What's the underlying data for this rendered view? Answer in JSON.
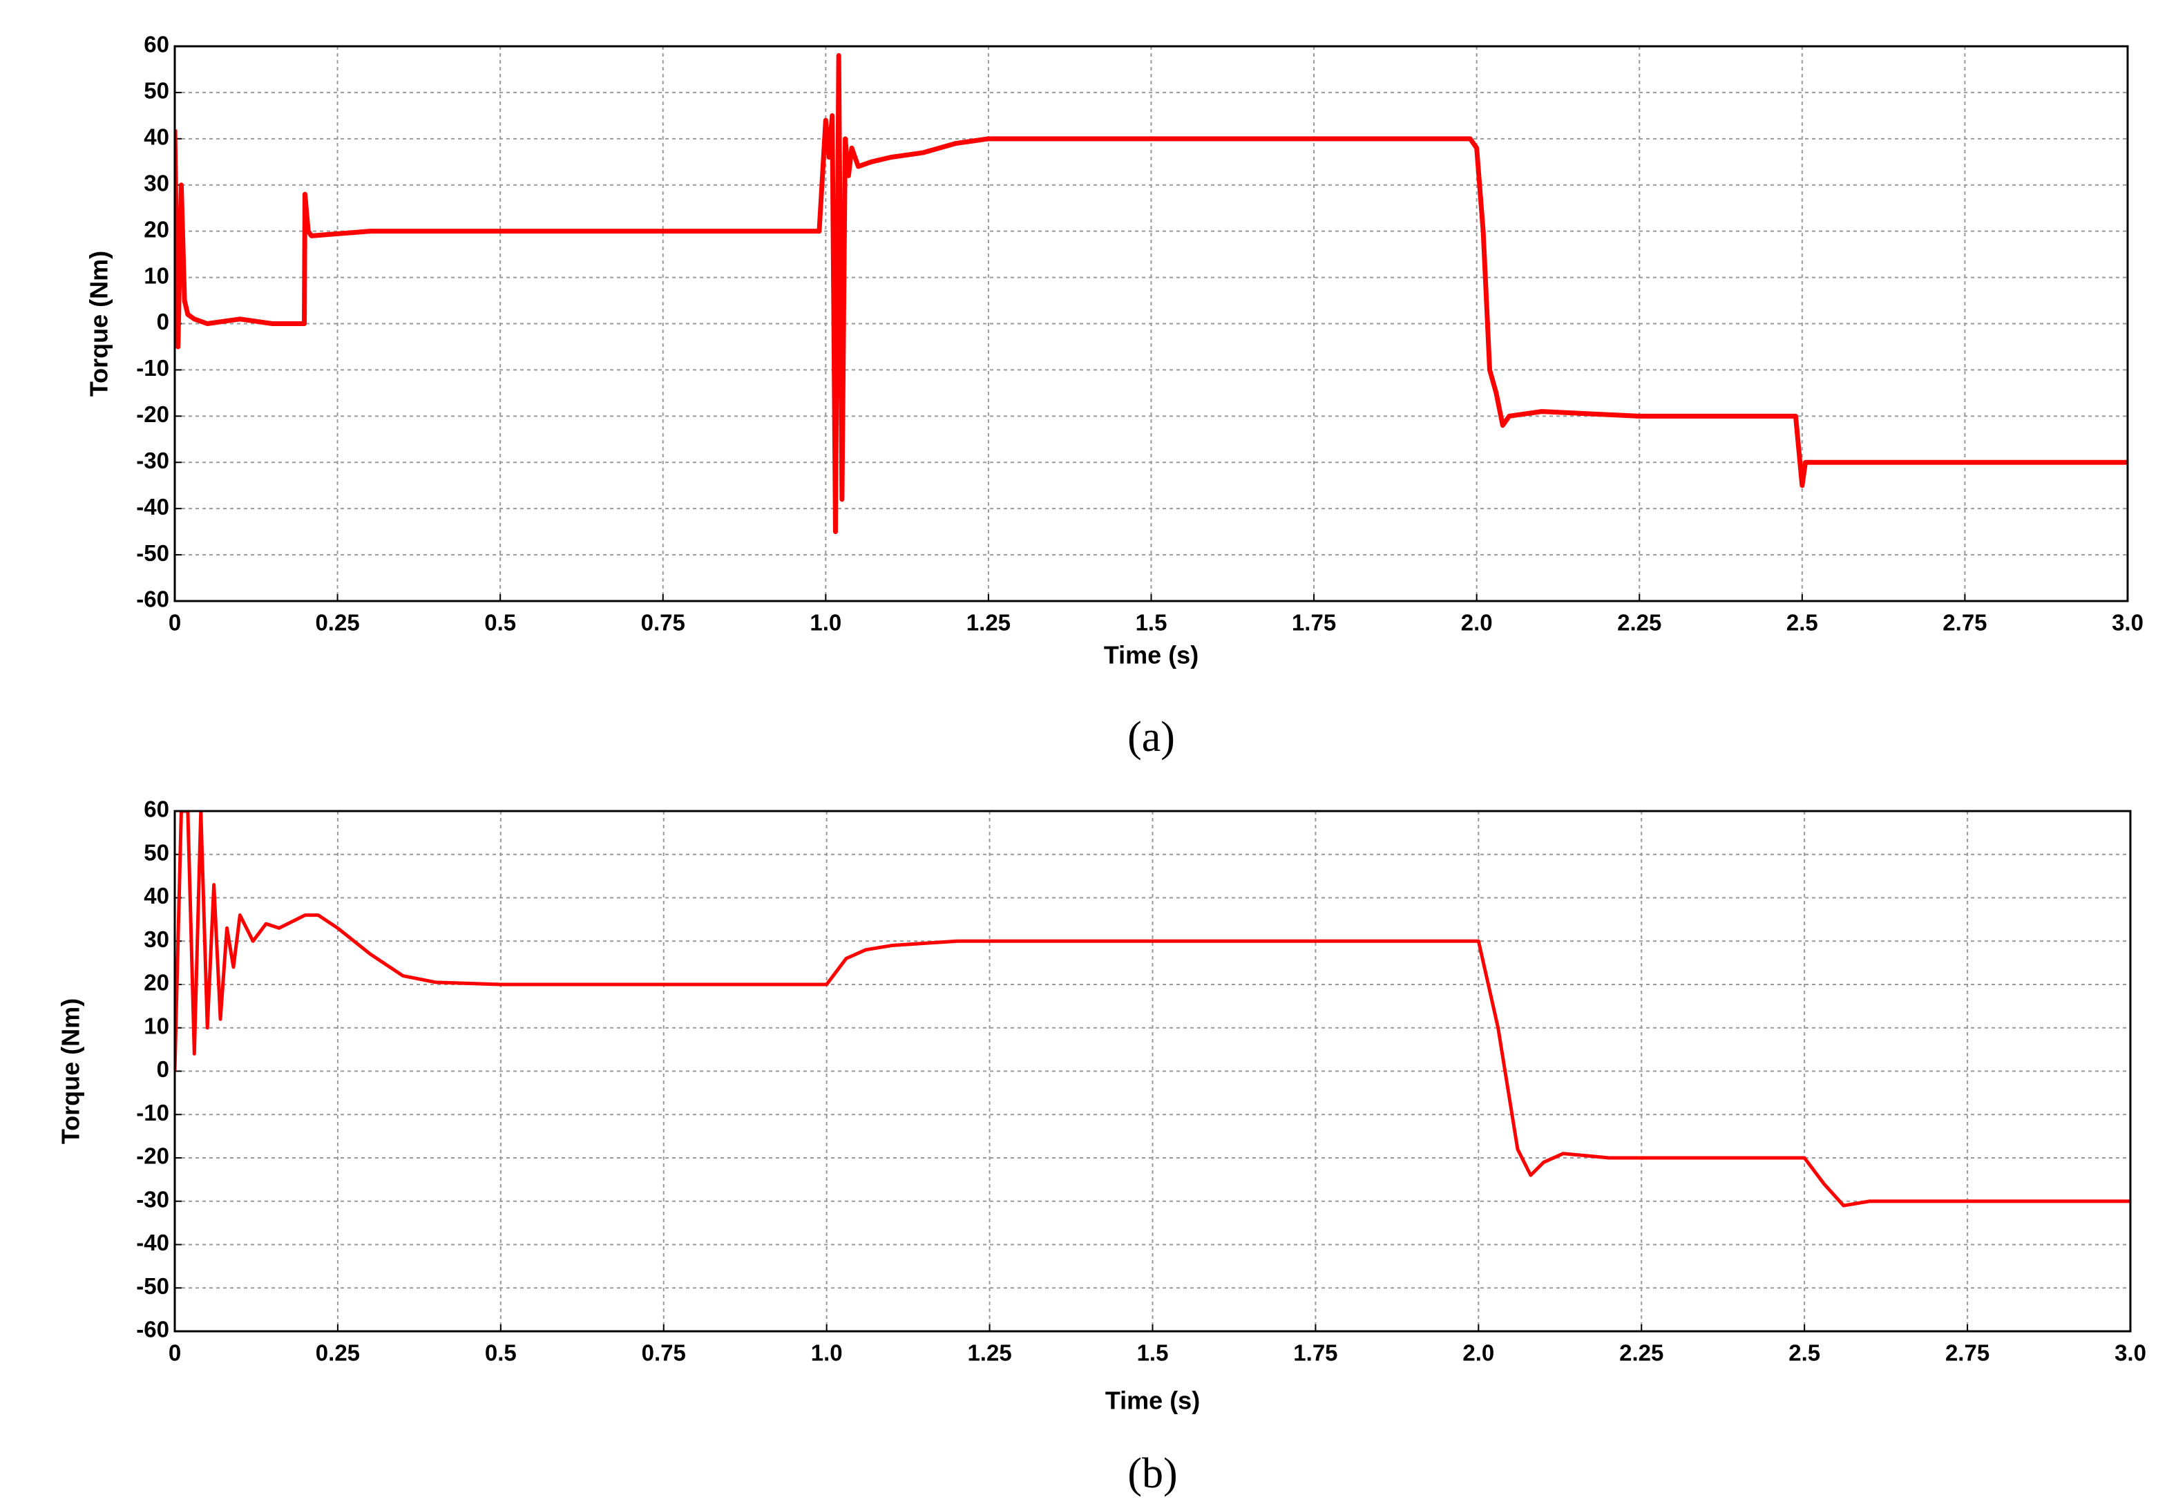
{
  "chart_data": [
    {
      "type": "line",
      "x_label": "Time (s)",
      "y_label": "Torque (Nm)",
      "caption": "(a)",
      "color": "#ff0000",
      "grid": true,
      "line_width": 7,
      "x": [
        0,
        0.005,
        0.01,
        0.015,
        0.02,
        0.03,
        0.05,
        0.1,
        0.15,
        0.199,
        0.2,
        0.205,
        0.21,
        0.3,
        0.5,
        0.75,
        0.99,
        1.0,
        1.005,
        1.01,
        1.015,
        1.02,
        1.025,
        1.03,
        1.035,
        1.04,
        1.05,
        1.07,
        1.1,
        1.15,
        1.2,
        1.25,
        1.5,
        1.75,
        1.99,
        2.0,
        2.01,
        2.02,
        2.03,
        2.04,
        2.05,
        2.1,
        2.25,
        2.49,
        2.5,
        2.505,
        2.51,
        2.75,
        3.0
      ],
      "values": [
        42,
        -5,
        30,
        5,
        2,
        1,
        0,
        1,
        0,
        0,
        28,
        20,
        19,
        20,
        20,
        20,
        20,
        44,
        36,
        45,
        -45,
        58,
        -38,
        40,
        32,
        38,
        34,
        35,
        36,
        37,
        39,
        40,
        40,
        40,
        40,
        38,
        20,
        -10,
        -15,
        -22,
        -20,
        -19,
        -20,
        -20,
        -35,
        -30,
        -30,
        -30,
        -30
      ],
      "xlim": [
        0,
        3
      ],
      "ylim": [
        -60,
        60
      ],
      "xticks": [
        0,
        0.25,
        0.5,
        0.75,
        {
          "value": 1,
          "label": "1.0"
        },
        1.25,
        1.5,
        1.75,
        {
          "value": 2,
          "label": "2.0"
        },
        2.25,
        2.5,
        2.75,
        {
          "value": 3,
          "label": "3.0"
        }
      ],
      "yticks": [
        -60,
        -50,
        -40,
        -30,
        -20,
        -10,
        0,
        10,
        20,
        30,
        40,
        50,
        60
      ]
    },
    {
      "type": "line",
      "x_label": "Time (s)",
      "y_label": "Torque (Nm)",
      "caption": "(b)",
      "color": "#ff0000",
      "grid": true,
      "line_width": 5,
      "x": [
        0,
        0.01,
        0.02,
        0.03,
        0.04,
        0.05,
        0.06,
        0.07,
        0.08,
        0.09,
        0.1,
        0.12,
        0.14,
        0.16,
        0.2,
        0.22,
        0.25,
        0.3,
        0.35,
        0.4,
        0.5,
        0.75,
        1.0,
        1.03,
        1.06,
        1.1,
        1.2,
        1.5,
        1.75,
        2.0,
        2.03,
        2.06,
        2.08,
        2.1,
        2.13,
        2.2,
        2.5,
        2.53,
        2.56,
        2.6,
        2.75,
        3.0
      ],
      "values": [
        0,
        60,
        60,
        4,
        60,
        10,
        43,
        12,
        33,
        24,
        36,
        30,
        34,
        33,
        36,
        36,
        33,
        27,
        22,
        20.5,
        20,
        20,
        20,
        26,
        28,
        29,
        30,
        30,
        30,
        30,
        10,
        -18,
        -24,
        -21,
        -19,
        -20,
        -20,
        -26,
        -31,
        -30,
        -30,
        -30
      ],
      "xlim": [
        0,
        3
      ],
      "ylim": [
        -60,
        60
      ],
      "xticks": [
        0,
        0.25,
        0.5,
        0.75,
        {
          "value": 1,
          "label": "1.0"
        },
        1.25,
        1.5,
        1.75,
        {
          "value": 2,
          "label": "2.0"
        },
        2.25,
        2.5,
        2.75,
        {
          "value": 3,
          "label": "3.0"
        }
      ],
      "yticks": [
        -60,
        -50,
        -40,
        -30,
        -20,
        -10,
        0,
        10,
        20,
        30,
        40,
        50,
        60
      ]
    }
  ]
}
